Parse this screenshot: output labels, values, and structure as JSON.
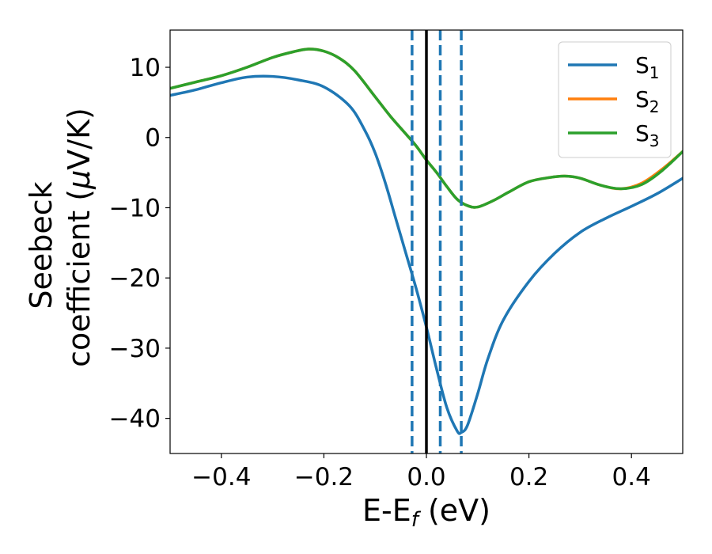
{
  "chart_data": {
    "type": "line",
    "xlabel": {
      "main": "E-E",
      "sub": "f",
      "unit": " (eV)"
    },
    "ylabel": {
      "line1": "Seebeck",
      "line2_pre": "coefficient  (",
      "mu": "μ",
      "line2_post": "V/K)"
    },
    "xlim": [
      -0.5,
      0.5
    ],
    "ylim": [
      -45,
      15.3
    ],
    "xticks": [
      -0.4,
      -0.2,
      0.0,
      0.2,
      0.4
    ],
    "xtick_labels": [
      "−0.4",
      "−0.2",
      "0.0",
      "0.2",
      "0.4"
    ],
    "yticks": [
      10,
      0,
      -10,
      -20,
      -30,
      -40
    ],
    "ytick_labels": [
      "10",
      "0",
      "−10",
      "−20",
      "−30",
      "−40"
    ],
    "legend_position": "top-right",
    "grid": false,
    "fermi_line": {
      "x": 0.0,
      "color": "#000000"
    },
    "dashed_lines": {
      "x": [
        -0.028,
        0.027,
        0.068
      ],
      "color": "#1f77b4"
    },
    "series": [
      {
        "name": "S",
        "sub": "1",
        "color": "#1f77b4",
        "x": [
          -0.5,
          -0.45,
          -0.4,
          -0.35,
          -0.3,
          -0.25,
          -0.2,
          -0.15,
          -0.12,
          -0.1,
          -0.08,
          -0.06,
          -0.04,
          -0.02,
          0.0,
          0.02,
          0.04,
          0.06,
          0.068,
          0.08,
          0.1,
          0.12,
          0.15,
          0.2,
          0.25,
          0.3,
          0.35,
          0.4,
          0.45,
          0.5
        ],
        "y": [
          6.0,
          6.8,
          7.8,
          8.6,
          8.7,
          8.2,
          7.2,
          4.5,
          1.0,
          -2.2,
          -6.5,
          -11.5,
          -16.5,
          -21.5,
          -27.0,
          -33.0,
          -38.5,
          -41.8,
          -42.0,
          -41.0,
          -36.5,
          -31.5,
          -26.0,
          -20.5,
          -16.5,
          -13.5,
          -11.5,
          -9.8,
          -8.0,
          -5.8
        ]
      },
      {
        "name": "S",
        "sub": "2",
        "color": "#ff7f0e",
        "x": [
          -0.5,
          -0.45,
          -0.4,
          -0.35,
          -0.3,
          -0.26,
          -0.23,
          -0.2,
          -0.17,
          -0.14,
          -0.1,
          -0.07,
          -0.04,
          -0.02,
          0.0,
          0.02,
          0.04,
          0.06,
          0.08,
          0.1,
          0.13,
          0.16,
          0.2,
          0.24,
          0.27,
          0.3,
          0.34,
          0.38,
          0.42,
          0.46,
          0.5
        ],
        "y": [
          7.0,
          7.9,
          8.8,
          10.0,
          11.4,
          12.2,
          12.6,
          12.3,
          11.3,
          9.5,
          5.8,
          3.0,
          0.5,
          -1.2,
          -3.2,
          -5.0,
          -7.0,
          -8.8,
          -9.7,
          -9.9,
          -9.0,
          -7.8,
          -6.3,
          -5.7,
          -5.5,
          -5.8,
          -6.8,
          -7.3,
          -6.5,
          -4.5,
          -2.0
        ]
      },
      {
        "name": "S",
        "sub": "3",
        "color": "#2ca02c",
        "x": [
          -0.5,
          -0.45,
          -0.4,
          -0.35,
          -0.3,
          -0.26,
          -0.23,
          -0.2,
          -0.17,
          -0.14,
          -0.1,
          -0.07,
          -0.04,
          -0.02,
          0.0,
          0.02,
          0.04,
          0.06,
          0.08,
          0.1,
          0.13,
          0.16,
          0.2,
          0.24,
          0.27,
          0.3,
          0.34,
          0.38,
          0.42,
          0.46,
          0.5
        ],
        "y": [
          7.0,
          7.9,
          8.8,
          10.0,
          11.4,
          12.2,
          12.6,
          12.3,
          11.3,
          9.5,
          5.8,
          3.0,
          0.5,
          -1.2,
          -3.2,
          -5.0,
          -7.0,
          -8.8,
          -9.7,
          -9.9,
          -9.0,
          -7.8,
          -6.3,
          -5.7,
          -5.5,
          -5.8,
          -6.8,
          -7.3,
          -6.7,
          -4.7,
          -2.0
        ]
      }
    ]
  }
}
